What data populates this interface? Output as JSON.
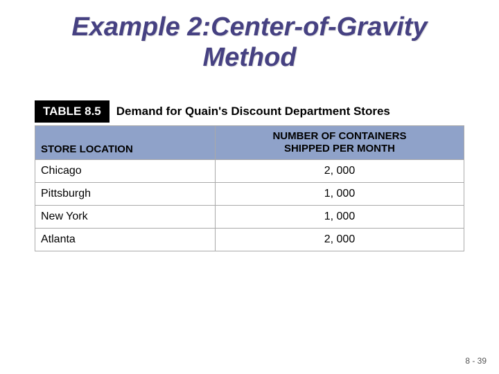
{
  "title_line1": "Example 2:Center-of-Gravity",
  "title_line2": "Method",
  "table": {
    "tag": "TABLE 8.5",
    "caption": "Demand for Quain's Discount Department Stores",
    "columns": {
      "location_header": "STORE LOCATION",
      "value_header_line1": "NUMBER OF CONTAINERS",
      "value_header_line2": "SHIPPED PER MONTH"
    },
    "rows": [
      {
        "location": "Chicago",
        "value": "2, 000"
      },
      {
        "location": "Pittsburgh",
        "value": "1, 000"
      },
      {
        "location": "New York",
        "value": "1, 000"
      },
      {
        "location": "Atlanta",
        "value": "2, 000"
      }
    ],
    "header_bg": "#8fa2c9",
    "tag_bg": "#000000",
    "tag_color": "#ffffff",
    "border_color": "#a9a9a9"
  },
  "footer": "8 - 39",
  "title_color": "#464182"
}
